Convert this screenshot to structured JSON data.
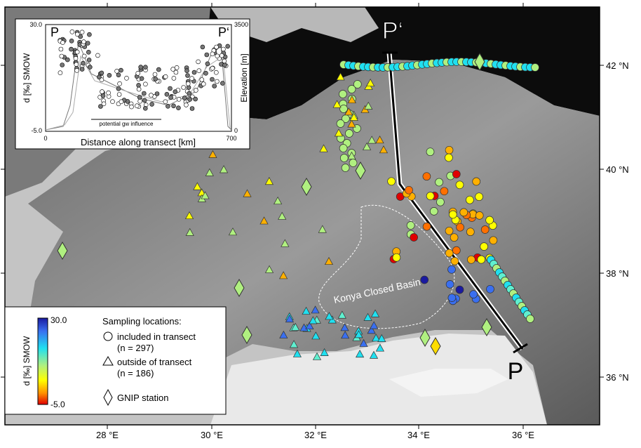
{
  "map": {
    "lon_labels": [
      "28 °E",
      "30 °E",
      "32 °E",
      "34 °E",
      "36 °E"
    ],
    "lat_labels": [
      "42 °N",
      "40 °N",
      "38 °N",
      "36 °N"
    ],
    "basin": "Konya Closed Basin",
    "p": "P",
    "p_prime": "P‘"
  },
  "inset": {
    "p": "P",
    "p_prime": "P‘",
    "left_top": "30.0",
    "left_bottom": "-5.0",
    "right_top": "3500",
    "right_bottom": "0",
    "x_start": "0",
    "x_end": "700",
    "y_label": "d [‰] SMOW",
    "y2_label": "Elevation [m]",
    "x_label": "Distance along transect [km]",
    "note": "potential gw influence"
  },
  "legend": {
    "scale_max": "30.0",
    "scale_min": "-5.0",
    "scale_label": "d [‰] SMOW",
    "title": "Sampling locations:",
    "included": "included in transect",
    "included_n": "(n = 297)",
    "outside": "outside of transect",
    "outside_n": "(n = 186)",
    "gnip": "GNIP station"
  }
}
